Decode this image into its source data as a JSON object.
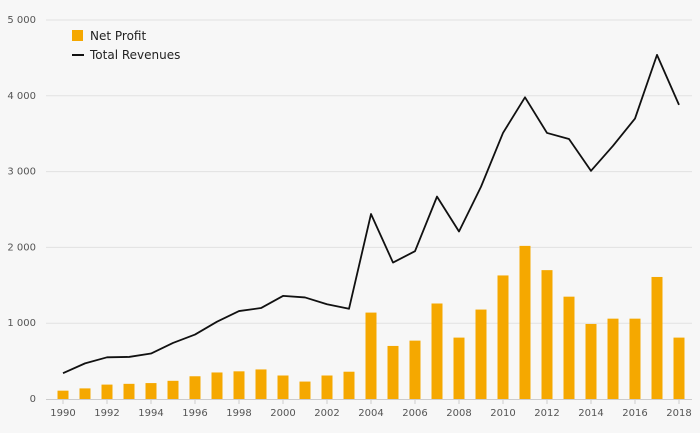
{
  "chart_data": {
    "type": "bar+line",
    "title": "",
    "xlabel": "",
    "ylabel": "",
    "ylim": [
      0,
      5000
    ],
    "y_ticks": [
      "0",
      "1 000",
      "2 000",
      "3 000",
      "4 000",
      "5 000"
    ],
    "y_tick_values": [
      0,
      1000,
      2000,
      3000,
      4000,
      5000
    ],
    "x_tick_labels": [
      "1990",
      "1992",
      "1994",
      "1996",
      "1998",
      "2000",
      "2002",
      "2004",
      "2006",
      "2008",
      "2010",
      "2012",
      "2014",
      "2016",
      "2018"
    ],
    "categories": [
      1990,
      1991,
      1992,
      1993,
      1994,
      1995,
      1996,
      1997,
      1998,
      1999,
      2000,
      2001,
      2002,
      2003,
      2004,
      2005,
      2006,
      2007,
      2008,
      2009,
      2010,
      2011,
      2012,
      2013,
      2014,
      2015,
      2016,
      2017,
      2018
    ],
    "series": [
      {
        "name": "Net Profit",
        "kind": "bar",
        "color": "#f5a800",
        "values": [
          110,
          140,
          190,
          200,
          210,
          240,
          300,
          350,
          365,
          390,
          310,
          230,
          310,
          360,
          1140,
          700,
          770,
          1260,
          810,
          1180,
          1630,
          2020,
          1700,
          1350,
          990,
          1060,
          1060,
          1610,
          810
        ]
      },
      {
        "name": "Total Revenues",
        "kind": "line",
        "color": "#111111",
        "values": [
          340,
          470,
          550,
          555,
          600,
          740,
          850,
          1020,
          1160,
          1200,
          1360,
          1340,
          1250,
          1190,
          2440,
          1800,
          1950,
          2670,
          2210,
          2800,
          3510,
          3980,
          3510,
          3430,
          3010,
          3340,
          3700,
          4540,
          3880
        ]
      }
    ],
    "legend": {
      "placement": "top-left",
      "items": [
        {
          "label": "Net Profit",
          "symbol": "square",
          "color": "#f5a800"
        },
        {
          "label": "Total Revenues",
          "symbol": "line",
          "color": "#111111"
        }
      ]
    },
    "grid": true
  }
}
